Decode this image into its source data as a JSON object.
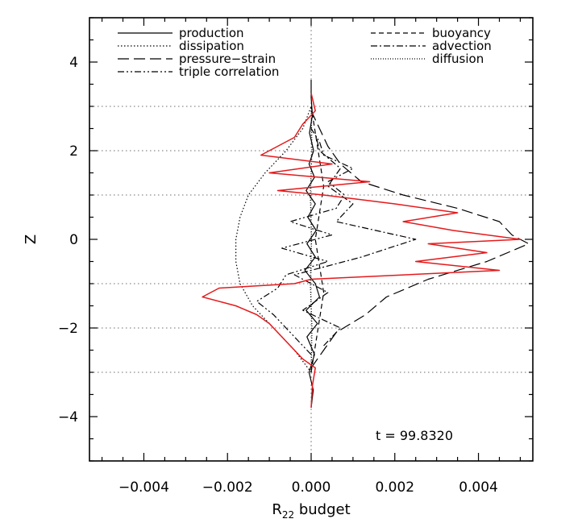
{
  "chart_data": {
    "type": "line",
    "xlabel": "R",
    "xlabel_sub": "22",
    "xlabel_suffix": " budget",
    "ylabel": "Z",
    "annotation": "t = 99.8320",
    "xlim": [
      -0.0053,
      0.0053
    ],
    "ylim": [
      -5,
      5
    ],
    "x_ticks": [
      -0.004,
      -0.002,
      0.0,
      0.002,
      0.004
    ],
    "x_tick_labels": [
      "−0.004",
      "−0.002",
      "0.000",
      "0.002",
      "0.004"
    ],
    "y_ticks": [
      -4,
      -2,
      0,
      2,
      4
    ],
    "y_tick_labels": [
      "−4",
      "−2",
      "0",
      "2",
      "4"
    ],
    "h_reference_lines": [
      -3,
      -2,
      -1,
      1,
      2,
      3
    ],
    "v_reference_line": 0.0,
    "legend_left": [
      "production",
      "dissipation",
      "pressure−strain",
      "triple correlation"
    ],
    "legend_right": [
      "buoyancy",
      "advection",
      "diffusion"
    ],
    "series": [
      {
        "name": "production",
        "style": "solid",
        "color": "#000000",
        "z": [
          -3.8,
          -3.4,
          -3.0,
          -2.6,
          -2.2,
          -1.9,
          -1.6,
          -1.3,
          -1.0,
          -0.7,
          -0.4,
          -0.1,
          0.2,
          0.5,
          0.8,
          1.1,
          1.4,
          1.7,
          2.0,
          2.4,
          2.8,
          3.2,
          3.6
        ],
        "x": [
          0.0,
          5e-05,
          -5e-05,
          8e-05,
          -0.0001,
          0.00015,
          -0.00012,
          0.0002,
          0.0001,
          -0.00015,
          0.0001,
          -0.0001,
          0.00012,
          -8e-05,
          0.0001,
          -0.00012,
          8e-05,
          -5e-05,
          6e-05,
          -4e-05,
          3e-05,
          0.0,
          0.0
        ]
      },
      {
        "name": "dissipation",
        "style": "dotted",
        "color": "#000000",
        "z": [
          -3.0,
          -2.5,
          -2.0,
          -1.5,
          -1.0,
          -0.5,
          0.0,
          0.5,
          1.0,
          1.5,
          2.0,
          2.5,
          3.0
        ],
        "x": [
          0.0,
          -0.0004,
          -0.0009,
          -0.0014,
          -0.0017,
          -0.0018,
          -0.0018,
          -0.0017,
          -0.0015,
          -0.0011,
          -0.0006,
          -0.0002,
          0.0
        ]
      },
      {
        "name": "pressure−strain",
        "style": "long-dash",
        "color": "#000000",
        "z": [
          -2.9,
          -2.5,
          -2.1,
          -1.7,
          -1.3,
          -0.9,
          -0.5,
          -0.1,
          0.1,
          0.4,
          0.7,
          1.0,
          1.3,
          1.7,
          2.1,
          2.5,
          2.9
        ],
        "x": [
          0.0,
          0.0003,
          0.0006,
          0.0013,
          0.0018,
          0.0028,
          0.0042,
          0.0052,
          0.0048,
          0.0045,
          0.0035,
          0.0022,
          0.0012,
          0.0007,
          0.0004,
          0.0002,
          0.0
        ]
      },
      {
        "name": "triple correlation",
        "style": "dash-dot-dot",
        "color": "#000000",
        "z": [
          -2.6,
          -2.3,
          -2.0,
          -1.7,
          -1.4,
          -1.1,
          -0.8,
          -0.5,
          -0.2,
          0.1,
          0.4,
          0.7,
          1.0,
          1.3,
          1.6,
          1.9,
          2.2,
          2.5
        ],
        "x": [
          0.0,
          -0.0003,
          -0.0006,
          -0.0009,
          -0.0013,
          -0.0008,
          -0.0006,
          0.0004,
          -0.0007,
          0.0005,
          -0.0005,
          0.0006,
          0.0008,
          0.0004,
          0.001,
          0.0003,
          0.0002,
          0.0
        ]
      },
      {
        "name": "buoyancy",
        "style": "short-dash",
        "color": "#000000",
        "z": [
          -3.0,
          -2.4,
          -1.8,
          -1.2,
          -0.6,
          0.0,
          0.6,
          1.2,
          1.8,
          2.4,
          3.0
        ],
        "x": [
          0.0,
          0.0001,
          0.0002,
          0.0003,
          0.0002,
          0.0001,
          0.0002,
          0.0003,
          0.0002,
          0.0001,
          0.0
        ]
      },
      {
        "name": "advection",
        "style": "dash-dot",
        "color": "#000000",
        "z": [
          -2.4,
          -2.0,
          -1.6,
          -1.2,
          -0.8,
          -0.4,
          0.0,
          0.4,
          0.8,
          1.2,
          1.6,
          2.0,
          2.4
        ],
        "x": [
          0.0003,
          0.0007,
          -0.0002,
          0.0004,
          -0.0004,
          0.0012,
          0.0025,
          0.0006,
          0.001,
          0.0004,
          0.0007,
          0.0002,
          0.0001
        ]
      },
      {
        "name": "diffusion",
        "style": "fine-dot",
        "color": "#000000",
        "z": [
          -3.0,
          -2.0,
          -1.0,
          0.0,
          1.0,
          2.0,
          3.0
        ],
        "x": [
          0.0,
          2e-05,
          -2e-05,
          1e-05,
          -2e-05,
          2e-05,
          0.0
        ]
      },
      {
        "name": "",
        "style": "solid",
        "color": "#e41a1c",
        "z": [
          -3.8,
          -3.3,
          -2.9,
          -2.7,
          -2.5,
          -2.3,
          -2.1,
          -1.9,
          -1.7,
          -1.5,
          -1.3,
          -1.1,
          -1.0,
          -0.9,
          -0.7,
          -0.5,
          -0.3,
          -0.1,
          0.0,
          0.2,
          0.4,
          0.6,
          0.8,
          1.0,
          1.1,
          1.3,
          1.5,
          1.7,
          1.9,
          2.1,
          2.3,
          2.6,
          2.9,
          3.3
        ],
        "x": [
          0.0,
          3e-05,
          0.0001,
          -0.0002,
          -0.0004,
          -0.0006,
          -0.0008,
          -0.001,
          -0.0013,
          -0.0018,
          -0.0026,
          -0.0022,
          -0.0004,
          0.0,
          0.0045,
          0.0025,
          0.0042,
          0.0028,
          0.005,
          0.0034,
          0.0022,
          0.0035,
          0.002,
          0.0003,
          -0.0008,
          0.0014,
          -0.001,
          0.0005,
          -0.0012,
          -0.0008,
          -0.0004,
          -0.0002,
          0.0001,
          0.0
        ]
      }
    ]
  }
}
